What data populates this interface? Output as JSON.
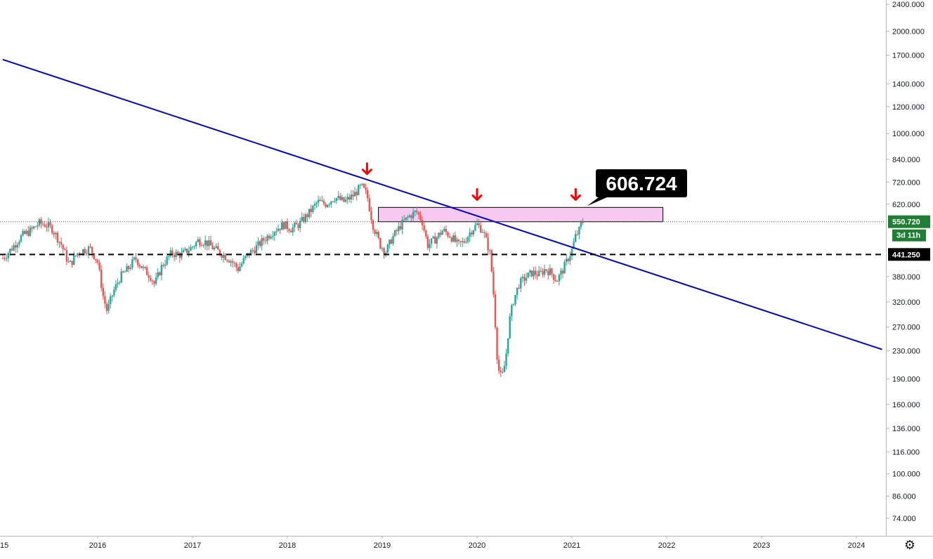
{
  "chart_data": {
    "type": "candlestick",
    "title": "",
    "xlabel": "",
    "ylabel": "",
    "scale": "log",
    "grid": false,
    "ylim": [
      66,
      2400
    ],
    "xlim": [
      2015.0,
      2024.35
    ],
    "y_ticks": [
      "2400.000",
      "2000.000",
      "1700.000",
      "1400.000",
      "1200.000",
      "1000.000",
      "840.000",
      "720.000",
      "620.000",
      "550.720",
      "441.250",
      "380.000",
      "320.000",
      "270.000",
      "230.000",
      "190.000",
      "160.000",
      "136.000",
      "116.000",
      "100.000",
      "86.000",
      "74.000"
    ],
    "x_ticks": [
      "2016",
      "2017",
      "2018",
      "2019",
      "2020",
      "2021",
      "2022",
      "2023",
      "2024"
    ],
    "x_tick_values": [
      2016,
      2017,
      2018,
      2019,
      2020,
      2021,
      2022,
      2023,
      2024
    ],
    "x_first_partial_label": "15",
    "current_price": 550.72,
    "current_price_label": "550.720",
    "countdown_label": "3d 11h",
    "support_level": 441.25,
    "support_label": "441.250",
    "callout": {
      "label": "606.724",
      "value": 606.724
    },
    "resistance_zone": {
      "x_start": 2018.96,
      "x_end": 2021.96,
      "y_low": 550.72,
      "y_high": 606.724
    },
    "trendline": {
      "x_start": 2015.0,
      "y_start": 1650,
      "x_end": 2024.27,
      "y_end": 232
    },
    "arrows": [
      {
        "x": 2018.84,
        "y": 750
      },
      {
        "x": 2020.0,
        "y": 630
      },
      {
        "x": 2021.04,
        "y": 630
      }
    ],
    "price_path": [
      [
        2015.0,
        430
      ],
      [
        2015.08,
        455
      ],
      [
        2015.2,
        500
      ],
      [
        2015.3,
        520
      ],
      [
        2015.38,
        545
      ],
      [
        2015.45,
        540
      ],
      [
        2015.52,
        525
      ],
      [
        2015.62,
        470
      ],
      [
        2015.7,
        410
      ],
      [
        2015.8,
        450
      ],
      [
        2015.92,
        460
      ],
      [
        2016.0,
        420
      ],
      [
        2016.06,
        330
      ],
      [
        2016.1,
        300
      ],
      [
        2016.16,
        340
      ],
      [
        2016.24,
        380
      ],
      [
        2016.32,
        400
      ],
      [
        2016.4,
        430
      ],
      [
        2016.48,
        400
      ],
      [
        2016.56,
        380
      ],
      [
        2016.6,
        360
      ],
      [
        2016.68,
        410
      ],
      [
        2016.78,
        445
      ],
      [
        2016.88,
        440
      ],
      [
        2016.98,
        460
      ],
      [
        2017.06,
        485
      ],
      [
        2017.14,
        480
      ],
      [
        2017.22,
        460
      ],
      [
        2017.3,
        445
      ],
      [
        2017.4,
        425
      ],
      [
        2017.48,
        400
      ],
      [
        2017.58,
        440
      ],
      [
        2017.66,
        460
      ],
      [
        2017.76,
        490
      ],
      [
        2017.86,
        520
      ],
      [
        2017.96,
        540
      ],
      [
        2018.04,
        525
      ],
      [
        2018.12,
        540
      ],
      [
        2018.22,
        580
      ],
      [
        2018.32,
        630
      ],
      [
        2018.4,
        620
      ],
      [
        2018.5,
        650
      ],
      [
        2018.6,
        630
      ],
      [
        2018.7,
        660
      ],
      [
        2018.78,
        700
      ],
      [
        2018.84,
        660
      ],
      [
        2018.9,
        540
      ],
      [
        2018.98,
        470
      ],
      [
        2019.04,
        450
      ],
      [
        2019.1,
        490
      ],
      [
        2019.2,
        540
      ],
      [
        2019.28,
        570
      ],
      [
        2019.36,
        590
      ],
      [
        2019.42,
        555
      ],
      [
        2019.48,
        470
      ],
      [
        2019.56,
        490
      ],
      [
        2019.64,
        520
      ],
      [
        2019.72,
        500
      ],
      [
        2019.8,
        470
      ],
      [
        2019.86,
        480
      ],
      [
        2019.94,
        520
      ],
      [
        2020.0,
        540
      ],
      [
        2020.06,
        520
      ],
      [
        2020.1,
        480
      ],
      [
        2020.14,
        440
      ],
      [
        2020.18,
        320
      ],
      [
        2020.2,
        250
      ],
      [
        2020.22,
        205
      ],
      [
        2020.26,
        190
      ],
      [
        2020.3,
        215
      ],
      [
        2020.34,
        280
      ],
      [
        2020.38,
        320
      ],
      [
        2020.44,
        360
      ],
      [
        2020.5,
        375
      ],
      [
        2020.58,
        390
      ],
      [
        2020.66,
        385
      ],
      [
        2020.72,
        400
      ],
      [
        2020.78,
        390
      ],
      [
        2020.84,
        370
      ],
      [
        2020.9,
        395
      ],
      [
        2020.96,
        430
      ],
      [
        2021.0,
        455
      ],
      [
        2021.04,
        500
      ],
      [
        2021.08,
        520
      ],
      [
        2021.1,
        545
      ],
      [
        2021.12,
        555
      ]
    ],
    "colors": {
      "up": "#26a69a",
      "down": "#ef5350",
      "trendline": "#0000cc",
      "zone_fill": "#f7c8f0",
      "zone_stroke": "#000000",
      "arrow": "#ff0000",
      "price_badge": "#1e7e34",
      "level_badge": "#000000",
      "callout_bg": "#000000"
    }
  },
  "ui": {
    "settings_icon": "gear-icon"
  }
}
